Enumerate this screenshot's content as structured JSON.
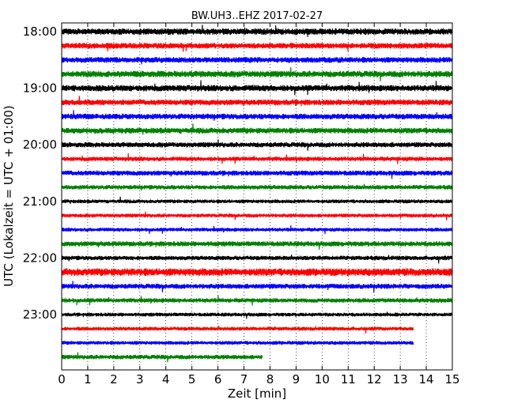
{
  "chart_data": {
    "type": "line",
    "title": "BW.UH3..EHZ 2017-02-27",
    "xlabel": "Zeit  [min]",
    "ylabel": "UTC (Lokalzeit = UTC + 01:00)",
    "xlim": [
      0,
      15
    ],
    "x_ticks": [
      "0",
      "1",
      "2",
      "3",
      "4",
      "5",
      "6",
      "7",
      "8",
      "9",
      "10",
      "11",
      "12",
      "13",
      "14",
      "15"
    ],
    "y_ticks": [
      "18:00",
      "19:00",
      "20:00",
      "21:00",
      "22:00",
      "23:00"
    ],
    "grid": "vertical dotted lines at each minute",
    "trace_interval_minutes": 15,
    "trace_colors": [
      "#000000",
      "#ff0000",
      "#0000ff",
      "#008000"
    ],
    "traces": [
      {
        "start": "18:00",
        "color": "#000000",
        "amplitude": 1.0,
        "end_min": 15
      },
      {
        "start": "18:15",
        "color": "#ff0000",
        "amplitude": 0.9,
        "end_min": 15
      },
      {
        "start": "18:30",
        "color": "#0000ff",
        "amplitude": 0.9,
        "end_min": 15
      },
      {
        "start": "18:45",
        "color": "#008000",
        "amplitude": 1.0,
        "end_min": 15
      },
      {
        "start": "19:00",
        "color": "#000000",
        "amplitude": 1.0,
        "end_min": 15
      },
      {
        "start": "19:15",
        "color": "#ff0000",
        "amplitude": 0.9,
        "end_min": 15
      },
      {
        "start": "19:30",
        "color": "#0000ff",
        "amplitude": 0.9,
        "end_min": 15
      },
      {
        "start": "19:45",
        "color": "#008000",
        "amplitude": 0.9,
        "end_min": 15
      },
      {
        "start": "20:00",
        "color": "#000000",
        "amplitude": 0.8,
        "end_min": 15
      },
      {
        "start": "20:15",
        "color": "#ff0000",
        "amplitude": 0.7,
        "end_min": 15
      },
      {
        "start": "20:30",
        "color": "#0000ff",
        "amplitude": 0.8,
        "end_min": 15
      },
      {
        "start": "20:45",
        "color": "#008000",
        "amplitude": 0.7,
        "end_min": 15
      },
      {
        "start": "21:00",
        "color": "#000000",
        "amplitude": 0.6,
        "end_min": 15
      },
      {
        "start": "21:15",
        "color": "#ff0000",
        "amplitude": 0.6,
        "end_min": 15
      },
      {
        "start": "21:30",
        "color": "#0000ff",
        "amplitude": 0.6,
        "end_min": 15
      },
      {
        "start": "21:45",
        "color": "#008000",
        "amplitude": 0.8,
        "end_min": 15
      },
      {
        "start": "22:00",
        "color": "#000000",
        "amplitude": 0.7,
        "end_min": 15
      },
      {
        "start": "22:15",
        "color": "#ff0000",
        "amplitude": 1.2,
        "end_min": 15
      },
      {
        "start": "22:30",
        "color": "#0000ff",
        "amplitude": 0.8,
        "end_min": 15
      },
      {
        "start": "22:45",
        "color": "#008000",
        "amplitude": 0.7,
        "end_min": 15
      },
      {
        "start": "23:00",
        "color": "#000000",
        "amplitude": 0.6,
        "end_min": 15
      },
      {
        "start": "23:15",
        "color": "#ff0000",
        "amplitude": 0.6,
        "end_min": 13.5
      },
      {
        "start": "23:30",
        "color": "#0000ff",
        "amplitude": 0.6,
        "end_min": 13.5
      },
      {
        "start": "23:45",
        "color": "#008000",
        "amplitude": 0.7,
        "end_min": 7.7
      }
    ]
  }
}
